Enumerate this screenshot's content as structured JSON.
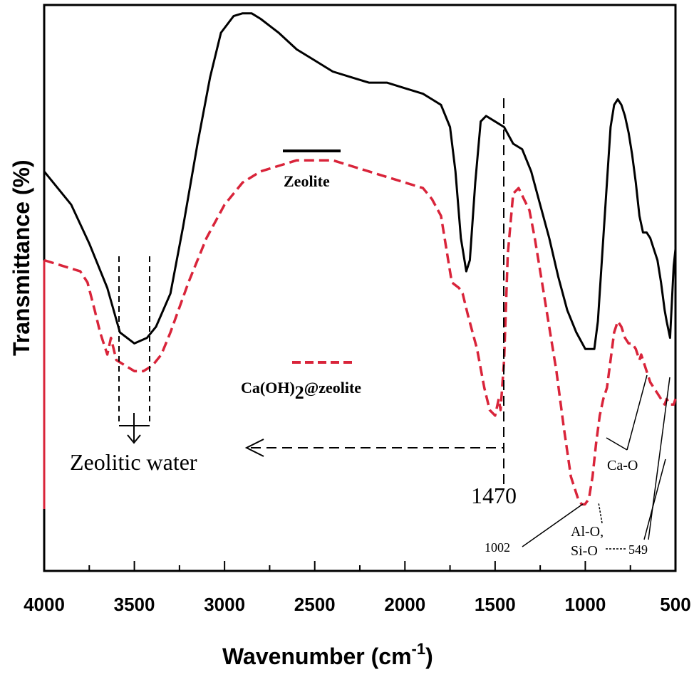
{
  "chart_data": {
    "type": "line",
    "xlabel": "Wavenumber (cm",
    "xlabel_sup": "-1",
    "xlabel_close": ")",
    "ylabel": "Transmittance (%)",
    "xlim": [
      4000,
      500
    ],
    "x_reversed": true,
    "y_ticks_shown": false,
    "xticks": [
      4000,
      3500,
      3000,
      2500,
      2000,
      1500,
      1000,
      500
    ],
    "series": [
      {
        "name": "Zeolite",
        "color": "#000000",
        "style": "solid",
        "x": [
          4000,
          3850,
          3750,
          3650,
          3580,
          3500,
          3430,
          3380,
          3300,
          3230,
          3150,
          3080,
          3020,
          2950,
          2900,
          2850,
          2800,
          2700,
          2600,
          2500,
          2400,
          2300,
          2200,
          2100,
          2000,
          1900,
          1850,
          1800,
          1750,
          1720,
          1690,
          1660,
          1640,
          1610,
          1580,
          1550,
          1500,
          1450,
          1400,
          1350,
          1300,
          1250,
          1200,
          1150,
          1100,
          1050,
          1000,
          950,
          930,
          900,
          880,
          860,
          840,
          820,
          800,
          780,
          760,
          740,
          720,
          700,
          680,
          660,
          640,
          620,
          600,
          580,
          560,
          549,
          530,
          510,
          500
        ],
        "y": [
          72,
          66,
          59,
          51,
          43,
          41,
          42,
          44,
          50,
          62,
          77,
          89,
          97,
          100,
          100.5,
          100.5,
          99.5,
          97,
          94,
          92,
          90,
          89,
          88,
          88,
          87,
          86,
          85,
          84,
          80,
          72,
          60,
          54,
          56,
          70,
          81,
          82,
          81,
          80,
          77,
          76,
          72,
          66,
          60,
          53,
          47,
          43,
          40,
          40,
          45,
          60,
          70,
          80,
          84,
          85,
          84,
          82,
          79,
          75,
          70,
          64,
          61,
          61,
          60,
          58,
          56,
          52,
          47,
          45,
          42,
          55,
          58
        ]
      },
      {
        "name": "Ca(OH)₂@zeolite",
        "color": "#d9243a",
        "style": "dashed",
        "x": [
          4000,
          3900,
          3800,
          3760,
          3720,
          3690,
          3670,
          3650,
          3630,
          3600,
          3550,
          3500,
          3450,
          3400,
          3350,
          3300,
          3200,
          3100,
          3000,
          2900,
          2800,
          2700,
          2600,
          2500,
          2400,
          2300,
          2200,
          2100,
          2000,
          1900,
          1850,
          1800,
          1780,
          1760,
          1740,
          1700,
          1680,
          1650,
          1600,
          1560,
          1530,
          1500,
          1480,
          1470,
          1450,
          1430,
          1400,
          1370,
          1340,
          1310,
          1280,
          1240,
          1200,
          1160,
          1120,
          1080,
          1040,
          1020,
          1002,
          980,
          960,
          940,
          920,
          900,
          880,
          860,
          840,
          820,
          800,
          780,
          760,
          740,
          720,
          700,
          690,
          680,
          660,
          640,
          620,
          600,
          580,
          560,
          549,
          530,
          510,
          500
        ],
        "y": [
          56,
          55,
          54,
          52,
          47,
          43,
          41,
          39,
          42,
          38,
          37,
          36,
          36,
          37,
          39,
          43,
          52,
          60,
          66,
          70,
          72,
          73,
          74,
          74,
          74,
          73,
          72,
          71,
          70,
          69,
          67,
          64,
          60,
          56,
          52,
          51,
          50,
          46,
          40,
          33,
          29,
          28,
          31,
          29,
          38,
          57,
          68,
          69,
          67,
          65,
          60,
          52,
          44,
          36,
          26,
          17,
          13,
          12,
          12,
          13,
          17,
          23,
          28,
          31,
          33,
          38,
          43,
          45,
          44,
          42,
          41,
          41,
          40,
          38,
          39,
          38,
          36,
          34,
          33,
          32,
          31,
          30,
          31,
          30,
          30,
          31
        ]
      }
    ],
    "legend": {
      "placement": "center",
      "entries": [
        "Zeolite",
        "Ca(OH)2@zeolite"
      ]
    },
    "annotations": {
      "zeolitic_water": "Zeolitic water",
      "peak_1470": "1470",
      "peak_1002": "1002",
      "al_o": "Al-O,",
      "si_o": "Si-O",
      "peak_549": "549",
      "ca_o": "Ca-O"
    }
  }
}
